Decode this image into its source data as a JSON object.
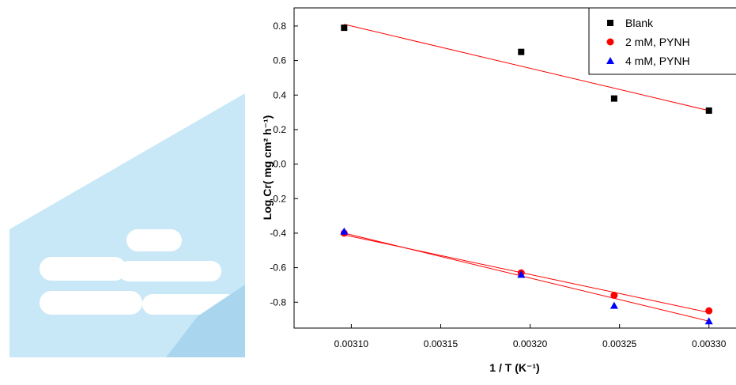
{
  "chart_data": {
    "type": "scatter",
    "x_label": "1 / T (K⁻¹)",
    "y_label": "Log Cr( mg cm² h⁻¹)",
    "x": [
      0.003096,
      0.003195,
      0.003247,
      0.0033
    ],
    "series": [
      {
        "name": "Blank",
        "color": "#000000",
        "marker": "square",
        "values": [
          0.79,
          0.65,
          0.38,
          0.31
        ]
      },
      {
        "name": "2 mM, PYNH",
        "color": "#ff0000",
        "marker": "circle",
        "values": [
          -0.4,
          -0.63,
          -0.76,
          -0.85
        ]
      },
      {
        "name": "4 mM, PYNH",
        "color": "#0000ff",
        "marker": "triangle",
        "values": [
          -0.39,
          -0.64,
          -0.82,
          -0.91
        ]
      }
    ],
    "fit_lines": [
      {
        "color": "#ff0000",
        "x": [
          0.003096,
          0.0033
        ],
        "values": [
          0.81,
          0.31
        ]
      },
      {
        "color": "#ff0000",
        "x": [
          0.003096,
          0.0033
        ],
        "values": [
          -0.41,
          -0.86
        ]
      },
      {
        "color": "#ff0000",
        "x": [
          0.003096,
          0.0033
        ],
        "values": [
          -0.4,
          -0.91
        ]
      }
    ],
    "xlim": [
      0.003068,
      0.00332
    ],
    "ylim": [
      -0.95,
      0.905
    ],
    "xticks": [
      {
        "value": 0.0031,
        "label": "0.00310"
      },
      {
        "value": 0.00315,
        "label": "0.00315"
      },
      {
        "value": 0.0032,
        "label": "0.00320"
      },
      {
        "value": 0.00325,
        "label": "0.00325"
      },
      {
        "value": 0.0033,
        "label": "0.00330"
      }
    ],
    "yticks": [
      -0.8,
      -0.6,
      -0.4,
      -0.2,
      {
        "value": 0,
        "label": "0.0"
      },
      0.2,
      0.4,
      0.6,
      0.8
    ],
    "legend": "upper right"
  }
}
